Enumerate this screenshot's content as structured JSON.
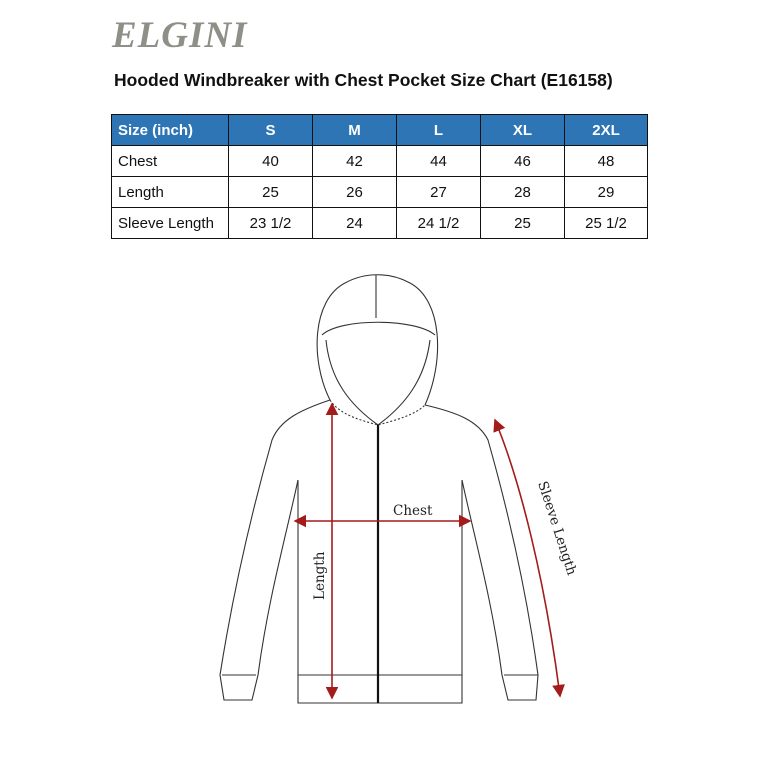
{
  "brand": "ELGINI",
  "title": "Hooded Windbreaker with Chest Pocket Size Chart (E16158)",
  "table": {
    "headers": [
      "Size (inch)",
      "S",
      "M",
      "L",
      "XL",
      "2XL"
    ],
    "rows": [
      {
        "label": "Chest",
        "values": [
          "40",
          "42",
          "44",
          "46",
          "48"
        ]
      },
      {
        "label": "Length",
        "values": [
          "25",
          "26",
          "27",
          "28",
          "29"
        ]
      },
      {
        "label": "Sleeve Length",
        "values": [
          "23 1/2",
          "24",
          "24 1/2",
          "25",
          "25 1/2"
        ]
      }
    ],
    "header_color": "#2e75b6"
  },
  "diagram": {
    "chest_label": "Chest",
    "length_label": "Length",
    "sleeve_label": "Sleeve Length",
    "arrow_color": "#a31b1b"
  }
}
